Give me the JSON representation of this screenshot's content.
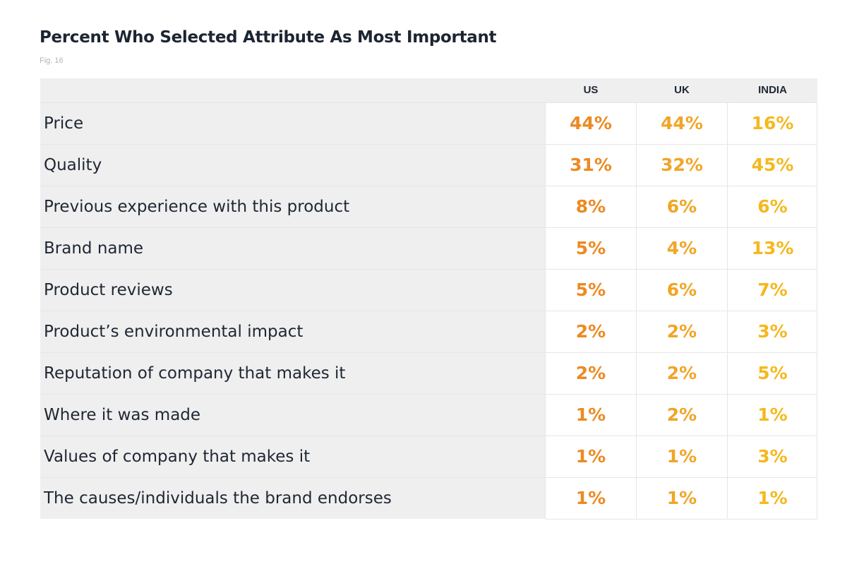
{
  "title": "Percent Who Selected Attribute As Most Important",
  "fig_label": "Fig. 16",
  "colors": {
    "us": "#ec8a22",
    "uk": "#f1a527",
    "india": "#f5b81e",
    "label_bg": "#efefef",
    "text": "#1f2733"
  },
  "chart_data": {
    "type": "table",
    "columns": [
      "US",
      "UK",
      "INDIA"
    ],
    "rows": [
      {
        "label": "Price",
        "values": [
          "44%",
          "44%",
          "16%"
        ]
      },
      {
        "label": "Quality",
        "values": [
          "31%",
          "32%",
          "45%"
        ]
      },
      {
        "label": "Previous experience with this product",
        "values": [
          "8%",
          "6%",
          "6%"
        ]
      },
      {
        "label": "Brand name",
        "values": [
          "5%",
          "4%",
          "13%"
        ]
      },
      {
        "label": "Product reviews",
        "values": [
          "5%",
          "6%",
          "7%"
        ]
      },
      {
        "label": "Product’s environmental impact",
        "values": [
          "2%",
          "2%",
          "3%"
        ]
      },
      {
        "label": "Reputation of company that makes it",
        "values": [
          "2%",
          "2%",
          "5%"
        ]
      },
      {
        "label": "Where it was made",
        "values": [
          "1%",
          "2%",
          "1%"
        ]
      },
      {
        "label": "Values of company that makes it",
        "values": [
          "1%",
          "1%",
          "3%"
        ]
      },
      {
        "label": "The causes/individuals the brand endorses",
        "values": [
          "1%",
          "1%",
          "1%"
        ]
      }
    ]
  }
}
